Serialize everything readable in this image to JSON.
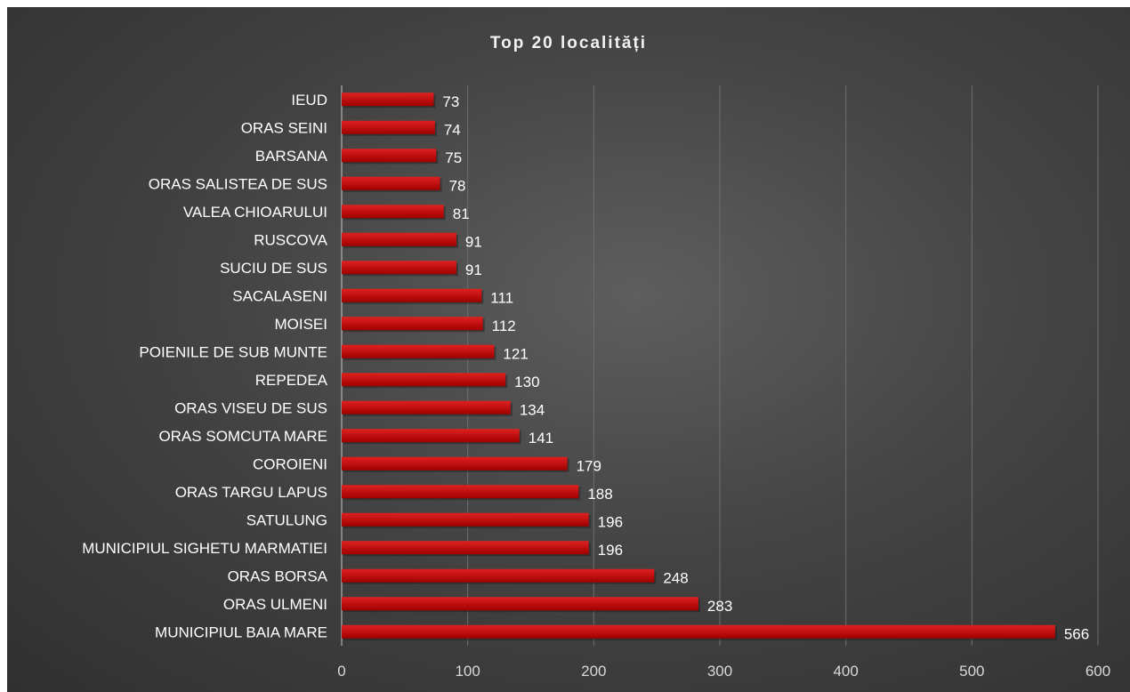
{
  "chart_data": {
    "type": "bar",
    "orientation": "horizontal",
    "title": "Top 20 localități",
    "categories": [
      "IEUD",
      "ORAS SEINI",
      "BARSANA",
      "ORAS SALISTEA DE SUS",
      "VALEA CHIOARULUI",
      "RUSCOVA",
      "SUCIU DE SUS",
      "SACALASENI",
      "MOISEI",
      "POIENILE DE SUB MUNTE",
      "REPEDEA",
      "ORAS VISEU DE SUS",
      "ORAS SOMCUTA MARE",
      "COROIENI",
      "ORAS TARGU LAPUS",
      "SATULUNG",
      "MUNICIPIUL SIGHETU MARMATIEI",
      "ORAS BORSA",
      "ORAS ULMENI",
      "MUNICIPIUL BAIA MARE"
    ],
    "values": [
      73,
      74,
      75,
      78,
      81,
      91,
      91,
      111,
      112,
      121,
      130,
      134,
      141,
      179,
      188,
      196,
      196,
      248,
      283,
      566
    ],
    "xlim": [
      0,
      600
    ],
    "xticks": [
      "0",
      "100",
      "200",
      "300",
      "400",
      "500",
      "600"
    ],
    "grid": true,
    "legend": "none",
    "colors": {
      "bar": "#c00000",
      "bar_highlight": "#e02020",
      "grid": "#6e6e6e",
      "axis": "#c8c8c8",
      "text": "#ffffff",
      "background": "#4a4a4a"
    }
  }
}
